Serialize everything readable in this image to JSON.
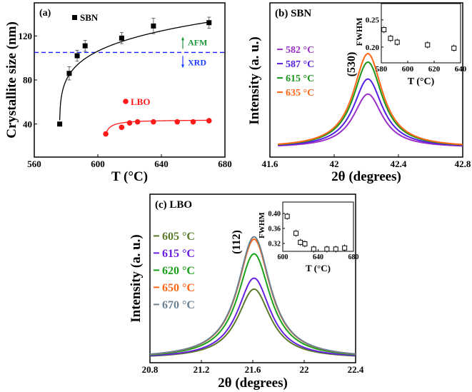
{
  "chart_data": [
    {
      "id": "a",
      "type": "scatter",
      "panel_label": "(a)",
      "xlabel": "T (°C)",
      "ylabel": "Crystallite size (nm)",
      "xlim": [
        560,
        680
      ],
      "ylim": [
        10,
        150
      ],
      "xticks": [
        560,
        600,
        640,
        680
      ],
      "yticks": [
        40,
        80,
        120
      ],
      "reference_line": {
        "y": 105,
        "color": "#1a1aff",
        "style": "dashed",
        "above_label": "AFM",
        "below_label": "XRD",
        "above_color": "#1a9a3a",
        "below_color": "#1a3aff"
      },
      "series": [
        {
          "name": "SBN",
          "color": "#000000",
          "marker": "square",
          "x": [
            576,
            582,
            587,
            592,
            615,
            635,
            670
          ],
          "y": [
            40,
            86,
            102,
            111,
            118,
            129,
            132
          ],
          "err": [
            0,
            6,
            5,
            5,
            5,
            7,
            5
          ]
        },
        {
          "name": "LBO",
          "color": "#ff1a1a",
          "marker": "circle",
          "x": [
            605,
            615,
            620,
            625,
            635,
            650,
            660,
            670
          ],
          "y": [
            31,
            37,
            41,
            42,
            42,
            42,
            42,
            43
          ],
          "err": [
            0,
            0,
            0,
            0,
            0,
            0,
            0,
            0
          ]
        }
      ]
    },
    {
      "id": "b",
      "type": "line",
      "panel_label": "(b) SBN",
      "xlabel": "2θ (degrees)",
      "ylabel": "Intensity (a. u.)",
      "xlim": [
        41.6,
        42.8
      ],
      "xticks": [
        41.6,
        42.0,
        42.4,
        42.8
      ],
      "peak_label": "(530)",
      "peak_center": 42.21,
      "hwhm": 0.11,
      "series": [
        {
          "name": "582 °C",
          "color": "#9b30c8",
          "peak": 0.57
        },
        {
          "name": "587 °C",
          "color": "#5520e0",
          "peak": 0.73
        },
        {
          "name": "615 °C",
          "color": "#1a961a",
          "peak": 0.91
        },
        {
          "name": "635 °C",
          "color": "#ff6614",
          "peak": 1.0
        }
      ]
    },
    {
      "id": "b-inset",
      "type": "scatter",
      "xlabel": "T (°C)",
      "ylabel": "FWHM",
      "xlim": [
        580,
        640
      ],
      "ylim": [
        0.171,
        0.28
      ],
      "xticks": [
        580,
        600,
        620,
        640
      ],
      "yticks": [
        "0.20",
        "0.25"
      ],
      "x": [
        582,
        587,
        592,
        615,
        635
      ],
      "y": [
        0.232,
        0.216,
        0.209,
        0.204,
        0.198
      ]
    },
    {
      "id": "c",
      "type": "line",
      "panel_label": "(c) LBO",
      "xlabel": "2θ (degrees)",
      "ylabel": "Intensity (a. u.)",
      "xlim": [
        20.8,
        22.4
      ],
      "xticks": [
        20.8,
        21.2,
        21.6,
        22.0,
        22.4
      ],
      "peak_label": "(112)",
      "peak_center": 21.61,
      "hwhm": 0.155,
      "series": [
        {
          "name": "605 °C",
          "color": "#5a7a2a",
          "peak": 0.57
        },
        {
          "name": "615 °C",
          "color": "#6a1fe0",
          "peak": 0.66
        },
        {
          "name": "620 °C",
          "color": "#1aa01a",
          "peak": 0.86
        },
        {
          "name": "650 °C",
          "color": "#ff6614",
          "peak": 0.98
        },
        {
          "name": "670 °C",
          "color": "#6a8090",
          "peak": 1.0
        }
      ]
    },
    {
      "id": "c-inset",
      "type": "scatter",
      "xlabel": "T (°C)",
      "ylabel": "FWHM",
      "xlim": [
        600,
        680
      ],
      "ylim": [
        0.299,
        0.43
      ],
      "xticks": [
        600,
        640,
        680
      ],
      "yticks": [
        "0.32",
        "0.36",
        "0.40"
      ],
      "x": [
        605,
        615,
        620,
        625,
        635,
        650,
        660,
        670
      ],
      "y": [
        0.392,
        0.347,
        0.323,
        0.319,
        0.305,
        0.305,
        0.305,
        0.308
      ]
    }
  ]
}
